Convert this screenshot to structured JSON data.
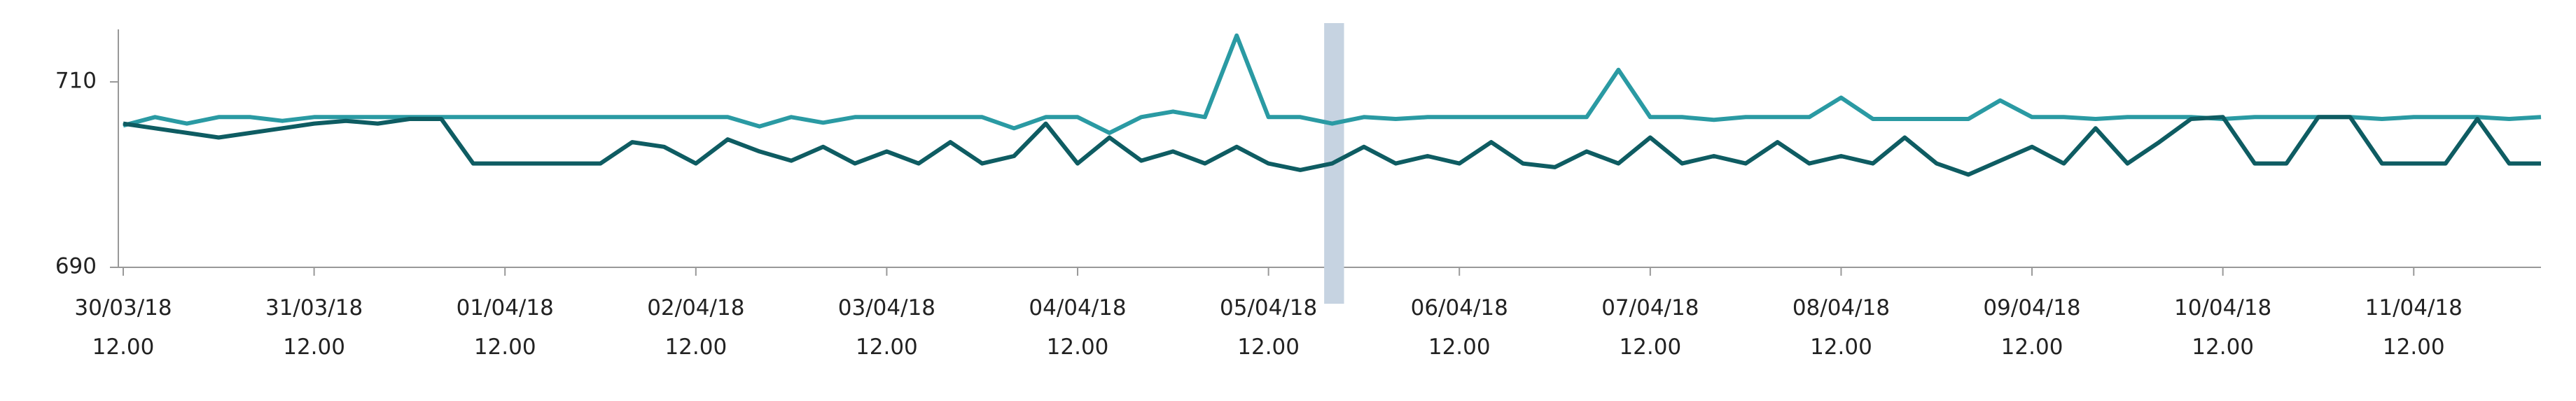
{
  "chart_data": {
    "type": "line",
    "x": [
      "2018-03-30 12:00",
      "2018-03-30 16:00",
      "2018-03-30 20:00",
      "2018-03-31 00:00",
      "2018-03-31 04:00",
      "2018-03-31 08:00",
      "2018-03-31 12:00",
      "2018-03-31 16:00",
      "2018-03-31 20:00",
      "2018-04-01 00:00",
      "2018-04-01 04:00",
      "2018-04-01 08:00",
      "2018-04-01 12:00",
      "2018-04-01 16:00",
      "2018-04-01 20:00",
      "2018-04-02 00:00",
      "2018-04-02 04:00",
      "2018-04-02 08:00",
      "2018-04-02 12:00",
      "2018-04-02 16:00",
      "2018-04-02 20:00",
      "2018-04-03 00:00",
      "2018-04-03 04:00",
      "2018-04-03 08:00",
      "2018-04-03 12:00",
      "2018-04-03 16:00",
      "2018-04-03 20:00",
      "2018-04-04 00:00",
      "2018-04-04 04:00",
      "2018-04-04 08:00",
      "2018-04-04 12:00",
      "2018-04-04 16:00",
      "2018-04-04 20:00",
      "2018-04-05 00:00",
      "2018-04-05 04:00",
      "2018-04-05 08:00",
      "2018-04-05 12:00",
      "2018-04-05 16:00",
      "2018-04-05 20:00",
      "2018-04-06 00:00",
      "2018-04-06 04:00",
      "2018-04-06 08:00",
      "2018-04-06 12:00",
      "2018-04-06 16:00",
      "2018-04-06 20:00",
      "2018-04-07 00:00",
      "2018-04-07 04:00",
      "2018-04-07 08:00",
      "2018-04-07 12:00",
      "2018-04-07 16:00",
      "2018-04-07 20:00",
      "2018-04-08 00:00",
      "2018-04-08 04:00",
      "2018-04-08 08:00",
      "2018-04-08 12:00",
      "2018-04-08 16:00",
      "2018-04-08 20:00",
      "2018-04-09 00:00",
      "2018-04-09 04:00",
      "2018-04-09 08:00",
      "2018-04-09 12:00",
      "2018-04-09 16:00",
      "2018-04-09 20:00",
      "2018-04-10 00:00",
      "2018-04-10 04:00",
      "2018-04-10 08:00",
      "2018-04-10 12:00",
      "2018-04-10 16:00",
      "2018-04-10 20:00",
      "2018-04-11 00:00",
      "2018-04-11 04:00",
      "2018-04-11 08:00",
      "2018-04-11 12:00",
      "2018-04-11 16:00",
      "2018-04-11 20:00",
      "2018-04-12 00:00",
      "2018-04-12 04:00"
    ],
    "series": [
      {
        "color": "#2a9aa3",
        "values": [
          705.3,
          706.2,
          705.5,
          706.2,
          706.2,
          705.8,
          706.2,
          706.2,
          706.2,
          706.2,
          706.2,
          706.2,
          706.2,
          706.2,
          706.2,
          706.2,
          706.2,
          706.2,
          706.2,
          706.2,
          705.2,
          706.2,
          705.6,
          706.2,
          706.2,
          706.2,
          706.2,
          706.2,
          705.0,
          706.2,
          706.2,
          704.5,
          706.2,
          706.8,
          706.2,
          715.0,
          706.2,
          706.2,
          705.5,
          706.2,
          706.0,
          706.2,
          706.2,
          706.2,
          706.2,
          706.2,
          706.2,
          711.3,
          706.2,
          706.2,
          705.9,
          706.2,
          706.2,
          706.2,
          708.3,
          706.0,
          706.0,
          706.0,
          706.0,
          708.0,
          706.2,
          706.2,
          706.0,
          706.2,
          706.2,
          706.2,
          706.0,
          706.2,
          706.2,
          706.2,
          706.2,
          706.0,
          706.2,
          706.2,
          706.2,
          706.0,
          706.2
        ]
      },
      {
        "color": "#0e5c62",
        "values": [
          705.5,
          705.0,
          704.5,
          704.0,
          704.5,
          705.0,
          705.5,
          705.8,
          705.5,
          706.0,
          706.0,
          701.2,
          701.2,
          701.2,
          701.2,
          701.2,
          703.5,
          703.0,
          701.2,
          703.8,
          702.5,
          701.5,
          703.0,
          701.2,
          702.5,
          701.2,
          703.5,
          701.2,
          702.0,
          705.5,
          701.2,
          704.0,
          701.5,
          702.5,
          701.2,
          703.0,
          701.2,
          700.5,
          701.2,
          703.0,
          701.2,
          702.0,
          701.2,
          703.5,
          701.2,
          700.8,
          702.5,
          701.2,
          704.0,
          701.2,
          702.0,
          701.2,
          703.5,
          701.2,
          702.0,
          701.2,
          704.0,
          701.2,
          700.0,
          701.5,
          703.0,
          701.2,
          705.0,
          701.2,
          703.5,
          706.0,
          706.2,
          701.2,
          701.2,
          706.2,
          706.2,
          701.2,
          701.2,
          701.2,
          706.0,
          701.2,
          701.2
        ]
      }
    ],
    "xlim": [
      "2018-03-30 12:00",
      "2018-04-12 04:00"
    ],
    "xticks": [
      {
        "value": "2018-03-30 12:00",
        "label": "30/03/18 12.00"
      },
      {
        "value": "2018-03-31 12:00",
        "label": "31/03/18 12.00"
      },
      {
        "value": "2018-04-01 12:00",
        "label": "01/04/18 12.00"
      },
      {
        "value": "2018-04-02 12:00",
        "label": "02/04/18 12.00"
      },
      {
        "value": "2018-04-03 12:00",
        "label": "03/04/18 12.00"
      },
      {
        "value": "2018-04-04 12:00",
        "label": "04/04/18 12.00"
      },
      {
        "value": "2018-04-05 12:00",
        "label": "05/04/18 12.00"
      },
      {
        "value": "2018-04-06 12:00",
        "label": "06/04/18 12.00"
      },
      {
        "value": "2018-04-07 12:00",
        "label": "07/04/18 12.00"
      },
      {
        "value": "2018-04-08 12:00",
        "label": "08/04/18 12.00"
      },
      {
        "value": "2018-04-09 12:00",
        "label": "09/04/18 12.00"
      },
      {
        "value": "2018-04-10 12:00",
        "label": "10/04/18 12.00"
      },
      {
        "value": "2018-04-11 12:00",
        "label": "11/04/18 12.00"
      }
    ],
    "ylim": [
      690,
      716
    ],
    "yticks": [
      690,
      710
    ],
    "highlight": [
      "2018-04-05 19:00",
      "2018-04-05 21:30"
    ],
    "highlight_color": "#c6d3e1"
  }
}
